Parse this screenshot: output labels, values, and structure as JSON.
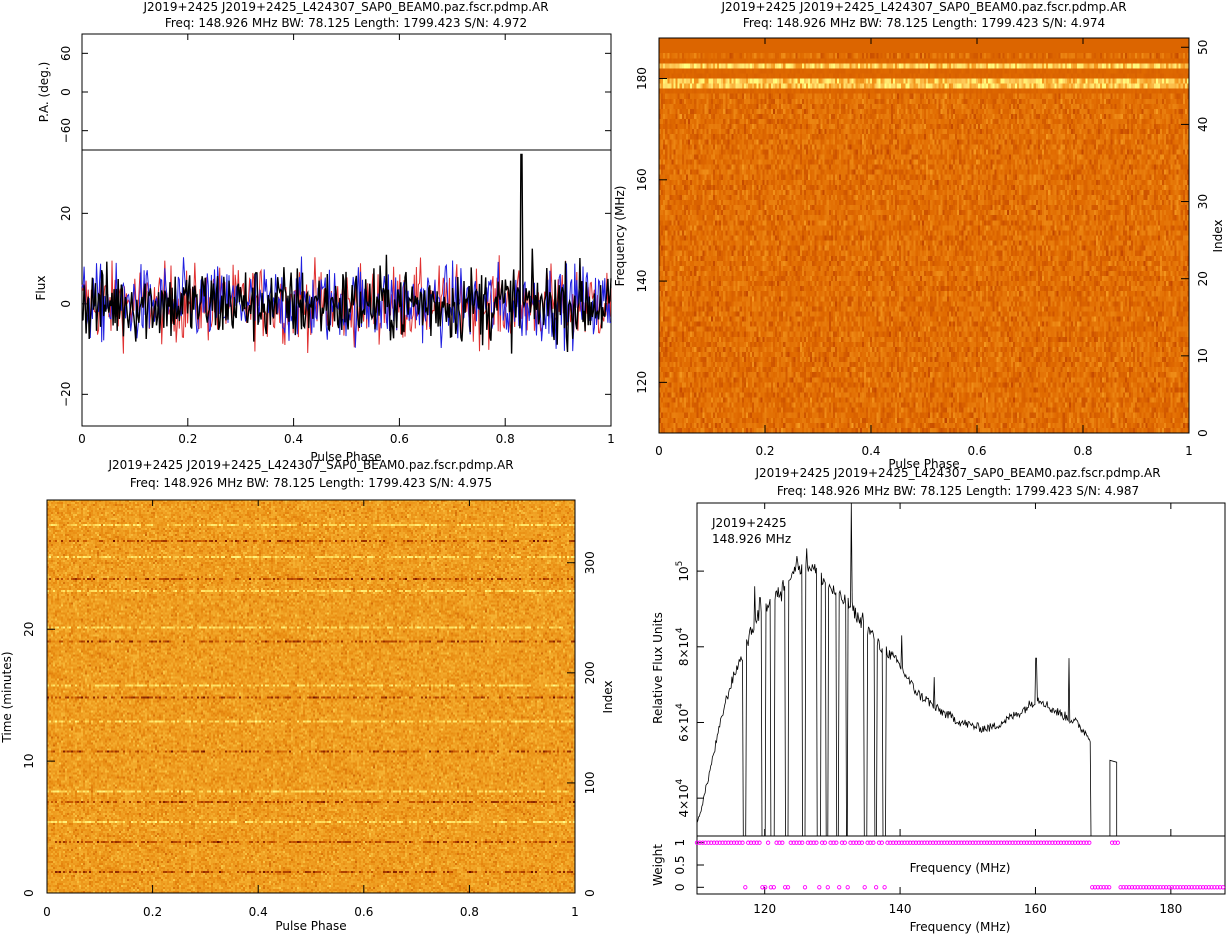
{
  "chart_data": [
    {
      "id": "polarization",
      "type": "line",
      "title": "J2019+2425  J2019+2425_L424307_SAP0_BEAM0.paz.fscr.pdmp.AR",
      "subtitle": "Freq: 148.926 MHz BW: 78.125 Length: 1799.423 S/N: 4.972",
      "pa_panel": {
        "ylabel": "P.A. (deg.)",
        "ylim": [
          -90,
          90
        ],
        "yticks": [
          60,
          0,
          -60
        ],
        "yticklabels": [
          "60",
          "0",
          "−60"
        ]
      },
      "flux_panel": {
        "ylabel": "Flux",
        "ylim": [
          -27,
          34
        ],
        "yticks": [
          20,
          0,
          -20
        ],
        "yticklabels": [
          "20",
          "0",
          "−20"
        ],
        "series_colors": [
          "#e03030",
          "#2020e0",
          "#000000"
        ],
        "noise_amplitude": [
          8,
          8,
          8
        ],
        "peak": {
          "x": 0.83,
          "y": 33
        }
      },
      "xlabel": "Pulse Phase",
      "xlim": [
        0,
        1
      ],
      "xticks": [
        0,
        0.2,
        0.4,
        0.6,
        0.8,
        1
      ],
      "xticklabels": [
        "0",
        "0.2",
        "0.4",
        "0.6",
        "0.8",
        "1"
      ]
    },
    {
      "id": "freq_phase",
      "type": "heatmap",
      "title": "J2019+2425  J2019+2425_L424307_SAP0_BEAM0.paz.fscr.pdmp.AR",
      "subtitle": "Freq: 148.926 MHz BW: 78.125 Length: 1799.423 S/N: 4.974",
      "xlabel": "Pulse Phase",
      "ylabel": "Frequency (MHz)",
      "y2label": "Index",
      "xlim": [
        0,
        1
      ],
      "ylim": [
        110,
        188
      ],
      "y2lim": [
        0,
        51.2
      ],
      "xticks": [
        0,
        0.2,
        0.4,
        0.6,
        0.8,
        1
      ],
      "xticklabels": [
        "0",
        "0.2",
        "0.4",
        "0.6",
        "0.8",
        "1"
      ],
      "yticks": [
        120,
        140,
        160,
        180
      ],
      "yticklabels": [
        "120",
        "140",
        "160",
        "180"
      ],
      "y2ticks": [
        0,
        10,
        20,
        30,
        40,
        50
      ],
      "y2ticklabels": [
        "0",
        "10",
        "20",
        "30",
        "40",
        "50"
      ],
      "colormap": [
        "#6a0d00",
        "#b83a00",
        "#e06a00",
        "#f59a20",
        "#ffd060",
        "#ffff80"
      ]
    },
    {
      "id": "time_phase",
      "type": "heatmap",
      "title": "J2019+2425  J2019+2425_L424307_SAP0_BEAM0.paz.fscr.pdmp.AR",
      "subtitle": "Freq: 148.926 MHz BW: 78.125 Length: 1799.423 S/N: 4.975",
      "xlabel": "Pulse Phase",
      "ylabel": "Time (minutes)",
      "y2label": "Index",
      "xlim": [
        0,
        1
      ],
      "ylim": [
        0,
        29.8
      ],
      "y2lim": [
        0,
        357
      ],
      "xticks": [
        0,
        0.2,
        0.4,
        0.6,
        0.8,
        1
      ],
      "xticklabels": [
        "0",
        "0.2",
        "0.4",
        "0.6",
        "0.8",
        "1"
      ],
      "yticks": [
        0,
        10,
        20
      ],
      "yticklabels": [
        "0",
        "10",
        "20"
      ],
      "y2ticks": [
        0,
        100,
        200,
        300
      ],
      "y2ticklabels": [
        "0",
        "100",
        "200",
        "300"
      ],
      "colormap": [
        "#6a0d00",
        "#c05000",
        "#e88a10",
        "#f5b030",
        "#ffe060",
        "#ffff90"
      ]
    },
    {
      "id": "bandpass",
      "type": "line",
      "title": "J2019+2425  J2019+2425_L424307_SAP0_BEAM0.paz.fscr.pdmp.AR",
      "subtitle": "Freq: 148.926 MHz BW: 78.125 Length: 1799.423 S/N: 4.987",
      "annotation_lines": [
        "J2019+2425",
        "148.926 MHz"
      ],
      "xlabel": "Frequency (MHz)",
      "inner_xlabel": "Frequency (MHz)",
      "ylabel": "Relative Flux Units",
      "weight_label": "Weight",
      "xlim": [
        110,
        188
      ],
      "xticks": [
        120,
        140,
        160,
        180
      ],
      "xticklabels": [
        "120",
        "140",
        "160",
        "180"
      ],
      "ylim": [
        30000,
        118000
      ],
      "yticks": [
        40000,
        60000,
        80000,
        100000
      ],
      "yticklabels": [
        [
          "4×10",
          "4"
        ],
        [
          "6×10",
          "4"
        ],
        [
          "8×10",
          "4"
        ],
        [
          "10",
          "5"
        ]
      ],
      "weight_ylim": [
        -0.15,
        1.15
      ],
      "weight_yticks": [
        0,
        0.5,
        1
      ],
      "weight_yticklabels": [
        "0",
        "0.5",
        "1"
      ],
      "weight_color": "#ff00ff",
      "bandpass_x": [
        110,
        111,
        112,
        113,
        114,
        115,
        116,
        117,
        118,
        119,
        120,
        121,
        122,
        123,
        124,
        125,
        126,
        127,
        128,
        129,
        130,
        131,
        132,
        133,
        134,
        135,
        136,
        137,
        138,
        139,
        140,
        141,
        142,
        143,
        144,
        145,
        146,
        147,
        148,
        149,
        150,
        151,
        152,
        153,
        154,
        155,
        156,
        157,
        158,
        159,
        160,
        161,
        162,
        163,
        164,
        165,
        166,
        167,
        168
      ],
      "bandpass_y": [
        33000,
        40000,
        48000,
        56000,
        64000,
        70000,
        75000,
        79000,
        84000,
        88000,
        90000,
        92000,
        94000,
        97000,
        100000,
        101000,
        102000,
        101000,
        99000,
        97000,
        95000,
        93000,
        92000,
        90000,
        87000,
        85000,
        83000,
        80000,
        79000,
        77000,
        75000,
        72000,
        69000,
        67000,
        66000,
        64000,
        63000,
        62000,
        61000,
        60000,
        59500,
        59000,
        58500,
        58500,
        59000,
        60000,
        61000,
        62000,
        63000,
        64500,
        66000,
        66000,
        64000,
        63000,
        62000,
        61000,
        60000,
        58000,
        56000
      ],
      "bandpass_spikes": [
        {
          "x": 118.5,
          "y": 96000
        },
        {
          "x": 119.3,
          "y": 93000
        },
        {
          "x": 122.5,
          "y": 92000
        },
        {
          "x": 124.8,
          "y": 104000
        },
        {
          "x": 126.2,
          "y": 106000
        },
        {
          "x": 132.8,
          "y": 118000
        },
        {
          "x": 134.5,
          "y": 89000
        },
        {
          "x": 140.2,
          "y": 83000
        },
        {
          "x": 145.0,
          "y": 72000
        },
        {
          "x": 160.1,
          "y": 77000
        },
        {
          "x": 165.0,
          "y": 77000
        }
      ],
      "zapped_channels": [
        [
          116.8,
          117.3
        ],
        [
          119.6,
          120.2
        ],
        [
          120.9,
          121.5
        ],
        [
          123.0,
          123.5
        ],
        [
          125.6,
          126.0
        ],
        [
          127.7,
          128.3
        ],
        [
          129.0,
          129.4
        ],
        [
          130.6,
          131.0
        ],
        [
          132.0,
          132.3
        ],
        [
          134.7,
          135.1
        ],
        [
          136.2,
          136.6
        ],
        [
          137.4,
          137.9
        ],
        [
          168.2,
          171.0
        ]
      ],
      "tail_segment": {
        "x": [
          171.0,
          172.0
        ],
        "y": [
          50000,
          49500
        ]
      }
    }
  ]
}
